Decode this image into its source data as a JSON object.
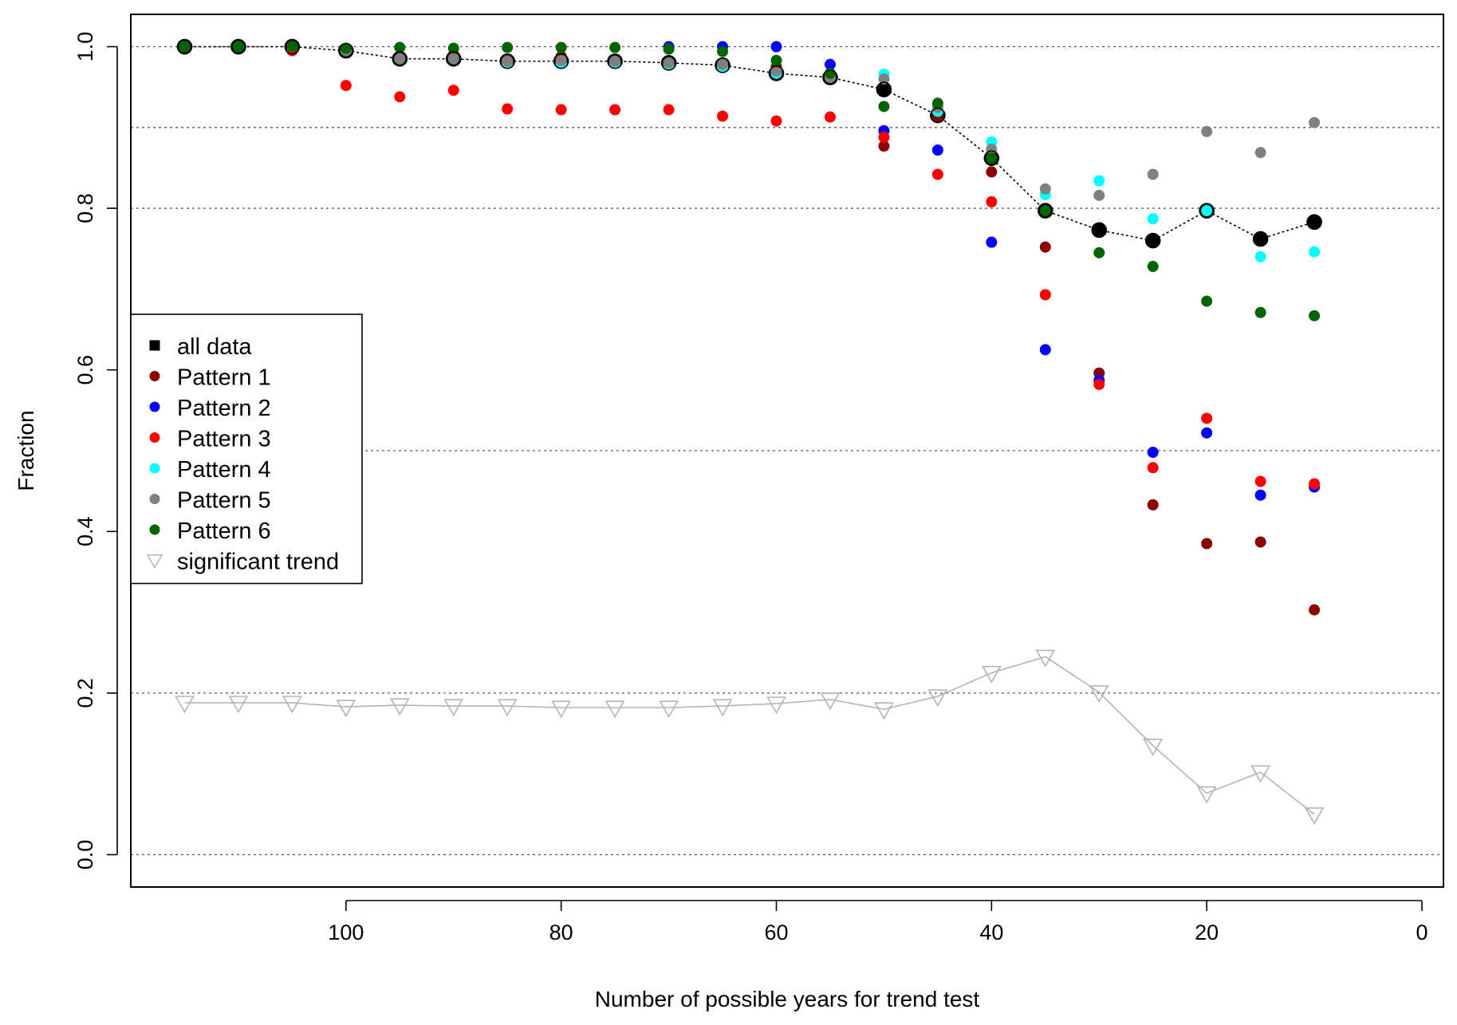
{
  "chart_data": {
    "type": "scatter",
    "title": "",
    "xlabel": "Number of possible years for trend test",
    "ylabel": "Fraction",
    "xlim": [
      120,
      -2
    ],
    "ylim": [
      -0.04,
      1.04
    ],
    "x_ticks": [
      100,
      80,
      60,
      40,
      20,
      0
    ],
    "x_tick_labels": [
      "100",
      "80",
      "60",
      "40",
      "20",
      "0"
    ],
    "y_ticks": [
      0.0,
      0.2,
      0.4,
      0.6,
      0.8,
      1.0
    ],
    "y_tick_labels": [
      "0.0",
      "0.2",
      "0.4",
      "0.6",
      "0.8",
      "1.0"
    ],
    "reference_lines": [
      0.0,
      0.2,
      0.5,
      0.8,
      0.9,
      1.0
    ],
    "legend_position": "center-left",
    "x": [
      115,
      110,
      105,
      100,
      95,
      90,
      85,
      80,
      75,
      70,
      65,
      60,
      55,
      50,
      45,
      40,
      35,
      30,
      25,
      20,
      15,
      10
    ],
    "series": [
      {
        "name": "all data",
        "color": "#000000",
        "marker": "square-dotted-line",
        "values": [
          1.0,
          1.0,
          1.0,
          0.995,
          0.985,
          0.985,
          0.982,
          0.982,
          0.982,
          0.98,
          0.977,
          0.967,
          0.962,
          0.947,
          0.915,
          0.862,
          0.797,
          0.773,
          0.76,
          0.797,
          0.762,
          0.783
        ]
      },
      {
        "name": "Pattern 1",
        "color": "#8b0000",
        "marker": "dot",
        "values": [
          1.0,
          1.0,
          1.0,
          0.995,
          0.985,
          0.99,
          0.983,
          0.988,
          0.982,
          0.98,
          0.978,
          0.975,
          0.965,
          0.877,
          0.913,
          0.845,
          0.752,
          0.596,
          0.433,
          0.385,
          0.387,
          0.303
        ]
      },
      {
        "name": "Pattern 2",
        "color": "#0000ff",
        "marker": "dot",
        "values": [
          1.0,
          1.0,
          1.0,
          0.995,
          0.985,
          0.985,
          0.982,
          0.982,
          0.982,
          1.0,
          1.0,
          1.0,
          0.978,
          0.896,
          0.872,
          0.758,
          0.625,
          0.587,
          0.498,
          0.522,
          0.445,
          0.455
        ]
      },
      {
        "name": "Pattern 3",
        "color": "#ff0000",
        "marker": "dot",
        "values": [
          1.0,
          1.0,
          0.995,
          0.952,
          0.938,
          0.946,
          0.923,
          0.922,
          0.922,
          0.922,
          0.914,
          0.908,
          0.913,
          0.888,
          0.842,
          0.808,
          0.693,
          0.582,
          0.479,
          0.54,
          0.462,
          0.459
        ]
      },
      {
        "name": "Pattern 4",
        "color": "#00ffff",
        "marker": "dot",
        "values": [
          1.0,
          1.0,
          1.0,
          0.995,
          0.985,
          0.985,
          0.98,
          0.98,
          0.98,
          0.978,
          0.975,
          0.967,
          0.962,
          0.966,
          0.92,
          0.882,
          0.817,
          0.834,
          0.787,
          0.797,
          0.74,
          0.746
        ]
      },
      {
        "name": "Pattern 5",
        "color": "#808080",
        "marker": "dot",
        "values": [
          1.0,
          1.0,
          1.0,
          0.995,
          0.985,
          0.985,
          0.982,
          0.983,
          0.982,
          0.98,
          0.978,
          0.97,
          0.962,
          0.96,
          0.925,
          0.873,
          0.824,
          0.816,
          0.842,
          0.895,
          0.869,
          0.906
        ]
      },
      {
        "name": "Pattern 6",
        "color": "#006400",
        "marker": "dot",
        "values": [
          1.0,
          1.0,
          1.0,
          0.998,
          0.999,
          0.998,
          0.999,
          0.999,
          0.999,
          0.997,
          0.994,
          0.983,
          0.967,
          0.926,
          0.93,
          0.862,
          0.797,
          0.745,
          0.728,
          0.685,
          0.671,
          0.667
        ]
      },
      {
        "name": "significant trend",
        "color": "#b4b4b4",
        "marker": "open-triangle-down-line",
        "values": [
          0.188,
          0.188,
          0.188,
          0.183,
          0.185,
          0.184,
          0.184,
          0.182,
          0.182,
          0.182,
          0.184,
          0.187,
          0.192,
          0.18,
          0.196,
          0.225,
          0.245,
          0.201,
          0.135,
          0.076,
          0.102,
          0.05
        ]
      }
    ]
  }
}
